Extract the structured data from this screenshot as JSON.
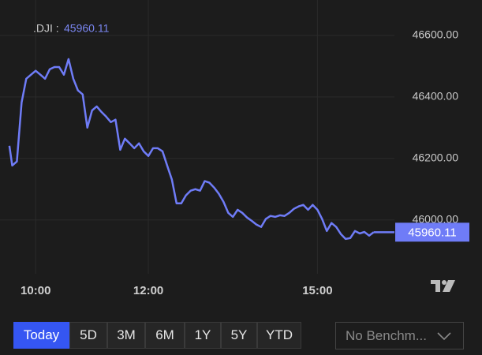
{
  "chart_data": {
    "type": "line",
    "header_label": ".DJI :",
    "last_value": 45960.11,
    "x": [
      "09:32",
      "09:35",
      "09:40",
      "09:45",
      "09:50",
      "09:55",
      "10:00",
      "10:05",
      "10:10",
      "10:15",
      "10:20",
      "10:25",
      "10:30",
      "10:35",
      "10:40",
      "10:45",
      "10:50",
      "10:55",
      "11:00",
      "11:05",
      "11:10",
      "11:15",
      "11:20",
      "11:25",
      "11:30",
      "11:35",
      "11:40",
      "11:45",
      "11:50",
      "11:55",
      "12:00",
      "12:05",
      "12:10",
      "12:15",
      "12:20",
      "12:25",
      "12:30",
      "12:35",
      "12:40",
      "12:45",
      "12:50",
      "12:55",
      "13:00",
      "13:05",
      "13:10",
      "13:15",
      "13:20",
      "13:25",
      "13:30",
      "13:35",
      "13:40",
      "13:45",
      "13:50",
      "13:55",
      "14:00",
      "14:05",
      "14:10",
      "14:15",
      "14:20",
      "14:25",
      "14:30",
      "14:35",
      "14:40",
      "14:45",
      "14:50",
      "14:55",
      "15:00",
      "15:05",
      "15:10",
      "15:15",
      "15:20",
      "15:25",
      "15:30",
      "15:35",
      "15:40",
      "15:45",
      "15:50",
      "15:55",
      "16:00"
    ],
    "series": [
      {
        "name": ".DJI",
        "color": "#6f7cf7",
        "values": [
          46241,
          46177,
          46190,
          46382,
          46459,
          46472,
          46485,
          46472,
          46459,
          46490,
          46497,
          46497,
          46472,
          46523,
          46459,
          46421,
          46408,
          46300,
          46356,
          46369,
          46351,
          46336,
          46318,
          46326,
          46228,
          46264,
          46249,
          46233,
          46249,
          46223,
          46208,
          46233,
          46233,
          46223,
          46177,
          46131,
          46054,
          46054,
          46080,
          46095,
          46100,
          46095,
          46126,
          46121,
          46105,
          46085,
          46059,
          46023,
          46010,
          46033,
          46023,
          46008,
          45997,
          45985,
          45977,
          46003,
          46013,
          46010,
          46015,
          46013,
          46023,
          46036,
          46044,
          46049,
          46033,
          46049,
          46033,
          46003,
          45964,
          45990,
          45977,
          45954,
          45938,
          45941,
          45964,
          45956,
          45961,
          45949,
          45960.11
        ]
      }
    ],
    "xlim": [
      "09:22",
      "16:22"
    ],
    "xticks": [
      "10:00",
      "12:00",
      "15:00"
    ],
    "ylim": [
      45825,
      46715
    ],
    "yticks": [
      {
        "value": 46000,
        "label": "46000.00"
      },
      {
        "value": 46200,
        "label": "46200.00"
      },
      {
        "value": 46400,
        "label": "46400.00"
      },
      {
        "value": 46600,
        "label": "46600.00"
      }
    ],
    "grid": true,
    "ranges": [
      "Today",
      "5D",
      "3M",
      "6M",
      "1Y",
      "5Y",
      "YTD"
    ],
    "active_range": 0,
    "benchmark": "No Benchm..."
  }
}
